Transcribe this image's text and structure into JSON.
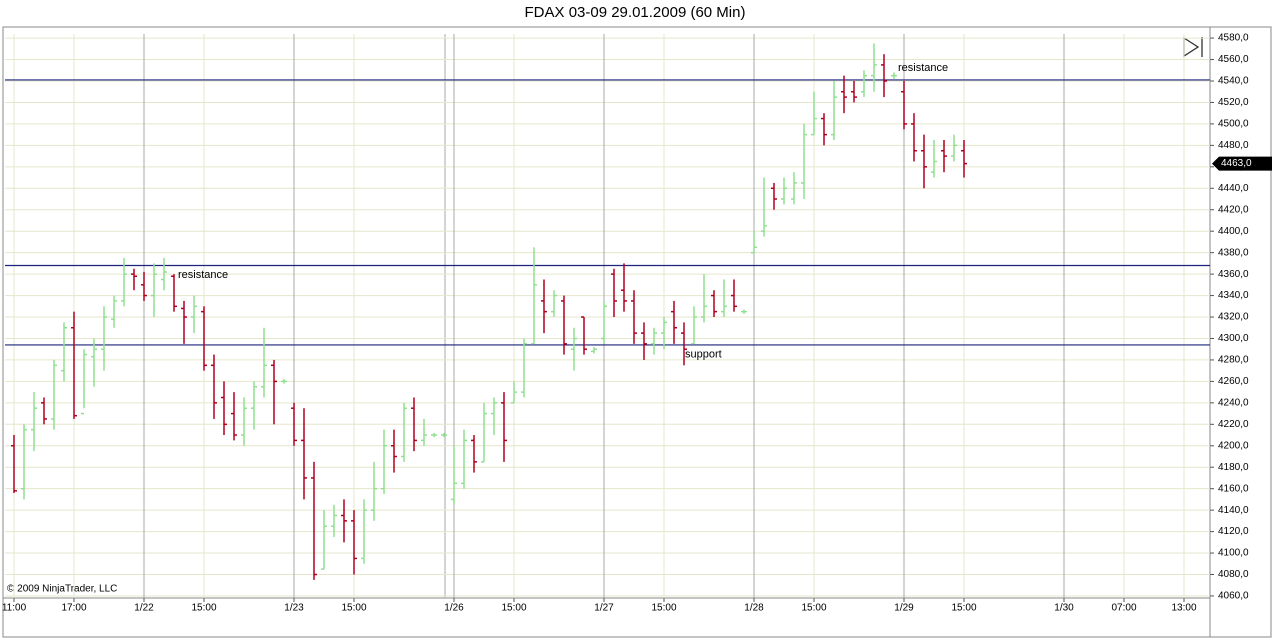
{
  "chart_data": {
    "type": "ohlc",
    "title": "FDAX 03-09  29.01.2009 (60 Min)",
    "copyright": "© 2009 NinjaTrader, LLC",
    "x": [
      0,
      1,
      2,
      3,
      4,
      5,
      6,
      7,
      8,
      9,
      10,
      11,
      12,
      13,
      14,
      15,
      16,
      17,
      18,
      19,
      20,
      21,
      22,
      23,
      24,
      25,
      26,
      27,
      28,
      29,
      30,
      31,
      32,
      33,
      34,
      35,
      36,
      37,
      38,
      39,
      40,
      41,
      42,
      43,
      44,
      45,
      46,
      47,
      48,
      49,
      50,
      51,
      52,
      53,
      54,
      55,
      56,
      57,
      58,
      59,
      60,
      61,
      62,
      63,
      64,
      65,
      66,
      67,
      68,
      69,
      70,
      71,
      72,
      73,
      74,
      75,
      76,
      77,
      78,
      79,
      80,
      81,
      82,
      83,
      84,
      85,
      86,
      87,
      88,
      89,
      90,
      91,
      92,
      93,
      94,
      95
    ],
    "open": [
      4200,
      4160,
      4215,
      4240,
      4225,
      4270,
      4310,
      4230,
      4283,
      4290,
      4318,
      4335,
      4360,
      4350,
      4340,
      4355,
      4358,
      4328,
      4320,
      4325,
      4275,
      4245,
      4230,
      4210,
      4235,
      4255,
      4275,
      4260,
      4235,
      4205,
      4170,
      4085,
      4125,
      4135,
      4130,
      4095,
      4140,
      4160,
      4200,
      4190,
      4235,
      4205,
      4210,
      4210,
      4150,
      4165,
      4205,
      4185,
      4230,
      4240,
      4240,
      4250,
      4295,
      4335,
      4325,
      4335,
      4290,
      4320,
      4288,
      4300,
      4360,
      4345,
      4335,
      4305,
      4295,
      4305,
      4325,
      4305,
      4295,
      4320,
      4340,
      4325,
      4340,
      4325,
      4380,
      4400,
      4440,
      4430,
      4430,
      4445,
      4490,
      4505,
      4490,
      4530,
      4530,
      4530,
      4545,
      4555,
      4545,
      4530,
      4500,
      4475,
      4455,
      4475,
      4470,
      4475
    ],
    "high": [
      4210,
      4220,
      4250,
      4245,
      4280,
      4315,
      4325,
      4290,
      4300,
      4330,
      4340,
      4375,
      4365,
      4362,
      4370,
      4375,
      4360,
      4335,
      4340,
      4330,
      4285,
      4260,
      4250,
      4245,
      4260,
      4310,
      4280,
      4262,
      4240,
      4235,
      4185,
      4140,
      4145,
      4150,
      4140,
      4150,
      4185,
      4215,
      4215,
      4240,
      4245,
      4225,
      4212,
      4212,
      4200,
      4215,
      4210,
      4240,
      4245,
      4250,
      4260,
      4300,
      4385,
      4355,
      4345,
      4340,
      4310,
      4320,
      4292,
      4335,
      4365,
      4370,
      4345,
      4315,
      4310,
      4320,
      4335,
      4315,
      4330,
      4360,
      4345,
      4355,
      4355,
      4327,
      4400,
      4450,
      4445,
      4450,
      4455,
      4500,
      4530,
      4510,
      4540,
      4545,
      4540,
      4550,
      4575,
      4565,
      4548,
      4540,
      4510,
      4490,
      4485,
      4485,
      4490,
      4485
    ],
    "low": [
      4156,
      4150,
      4195,
      4220,
      4215,
      4260,
      4225,
      4235,
      4255,
      4270,
      4310,
      4330,
      4345,
      4335,
      4320,
      4345,
      4325,
      4295,
      4305,
      4270,
      4225,
      4210,
      4205,
      4200,
      4215,
      4245,
      4220,
      4258,
      4200,
      4150,
      4075,
      4085,
      4115,
      4110,
      4080,
      4090,
      4130,
      4155,
      4175,
      4185,
      4195,
      4200,
      4208,
      4208,
      4145,
      4160,
      4175,
      4185,
      4210,
      4185,
      4240,
      4245,
      4295,
      4305,
      4320,
      4285,
      4270,
      4285,
      4286,
      4295,
      4320,
      4325,
      4295,
      4280,
      4285,
      4290,
      4295,
      4275,
      4295,
      4315,
      4320,
      4320,
      4325,
      4323,
      4380,
      4395,
      4420,
      4425,
      4425,
      4430,
      4490,
      4480,
      4485,
      4510,
      4520,
      4525,
      4530,
      4525,
      4542,
      4495,
      4465,
      4440,
      4450,
      4455,
      4465,
      4450
    ],
    "close": [
      4158,
      4215,
      4235,
      4225,
      4275,
      4310,
      4228,
      4285,
      4290,
      4320,
      4335,
      4360,
      4358,
      4340,
      4360,
      4362,
      4330,
      4320,
      4330,
      4275,
      4240,
      4220,
      4210,
      4235,
      4255,
      4275,
      4260,
      4260,
      4205,
      4170,
      4080,
      4125,
      4135,
      4130,
      4095,
      4140,
      4160,
      4200,
      4190,
      4235,
      4205,
      4210,
      4210,
      4210,
      4165,
      4205,
      4185,
      4230,
      4240,
      4205,
      4250,
      4295,
      4350,
      4325,
      4340,
      4295,
      4300,
      4290,
      4290,
      4330,
      4335,
      4335,
      4305,
      4295,
      4305,
      4315,
      4310,
      4290,
      4320,
      4330,
      4325,
      4330,
      4330,
      4325,
      4385,
      4405,
      4430,
      4440,
      4445,
      4490,
      4505,
      4490,
      4525,
      4525,
      4525,
      4545,
      4555,
      4540,
      4545,
      4500,
      4475,
      4460,
      4465,
      4470,
      4480,
      4463
    ],
    "up_color": "#90e090",
    "down_color": "#b00020",
    "xlim": [
      -0.9,
      119.6
    ],
    "xticks": [
      {
        "value": 0,
        "label": "11:00"
      },
      {
        "value": 6,
        "label": "17:00"
      },
      {
        "value": 13,
        "label": "1/22"
      },
      {
        "value": 19,
        "label": "15:00"
      },
      {
        "value": 28,
        "label": "1/23"
      },
      {
        "value": 34,
        "label": "15:00"
      },
      {
        "value": 44,
        "label": "1/26"
      },
      {
        "value": 50,
        "label": "15:00"
      },
      {
        "value": 59,
        "label": "1/27"
      },
      {
        "value": 65,
        "label": "15:00"
      },
      {
        "value": 74,
        "label": "1/28"
      },
      {
        "value": 80,
        "label": "15:00"
      },
      {
        "value": 89,
        "label": "1/29"
      },
      {
        "value": 95,
        "label": "15:00"
      },
      {
        "value": 105,
        "label": "1/30"
      },
      {
        "value": 111,
        "label": "07:00"
      },
      {
        "value": 117,
        "label": "13:00"
      }
    ],
    "ylim": [
      4058.1,
      4589.4
    ],
    "yticks": [
      {
        "value": 4060,
        "label": "4060,0"
      },
      {
        "value": 4080,
        "label": "4080,0"
      },
      {
        "value": 4100,
        "label": "4100,0"
      },
      {
        "value": 4120,
        "label": "4120,0"
      },
      {
        "value": 4140,
        "label": "4140,0"
      },
      {
        "value": 4160,
        "label": "4160,0"
      },
      {
        "value": 4180,
        "label": "4180,0"
      },
      {
        "value": 4200,
        "label": "4200,0"
      },
      {
        "value": 4220,
        "label": "4220,0"
      },
      {
        "value": 4240,
        "label": "4240,0"
      },
      {
        "value": 4260,
        "label": "4260,0"
      },
      {
        "value": 4280,
        "label": "4280,0"
      },
      {
        "value": 4300,
        "label": "4300,0"
      },
      {
        "value": 4320,
        "label": "4320,0"
      },
      {
        "value": 4340,
        "label": "4340,0"
      },
      {
        "value": 4360,
        "label": "4360,0"
      },
      {
        "value": 4380,
        "label": "4380,0"
      },
      {
        "value": 4400,
        "label": "4400,0"
      },
      {
        "value": 4420,
        "label": "4420,0"
      },
      {
        "value": 4440,
        "label": "4440,0"
      },
      {
        "value": 4460,
        "label": "4460,0"
      },
      {
        "value": 4480,
        "label": "4480,0"
      },
      {
        "value": 4500,
        "label": "4500,0"
      },
      {
        "value": 4520,
        "label": "4520,0"
      },
      {
        "value": 4540,
        "label": "4540,0"
      },
      {
        "value": 4560,
        "label": "4560,0"
      },
      {
        "value": 4580,
        "label": "4580,0"
      }
    ],
    "grid": true,
    "last_price": {
      "value": 4463,
      "label": "4463,0"
    },
    "hlines": [
      4541,
      4368,
      4294
    ],
    "hline_color": "#1a237e",
    "annotations": [
      {
        "text": "resistance",
        "x": 88.4,
        "y": 4552
      },
      {
        "text": "resistance",
        "x": 16.4,
        "y": 4359
      },
      {
        "text": "support",
        "x": 67.1,
        "y": 4285
      }
    ]
  }
}
